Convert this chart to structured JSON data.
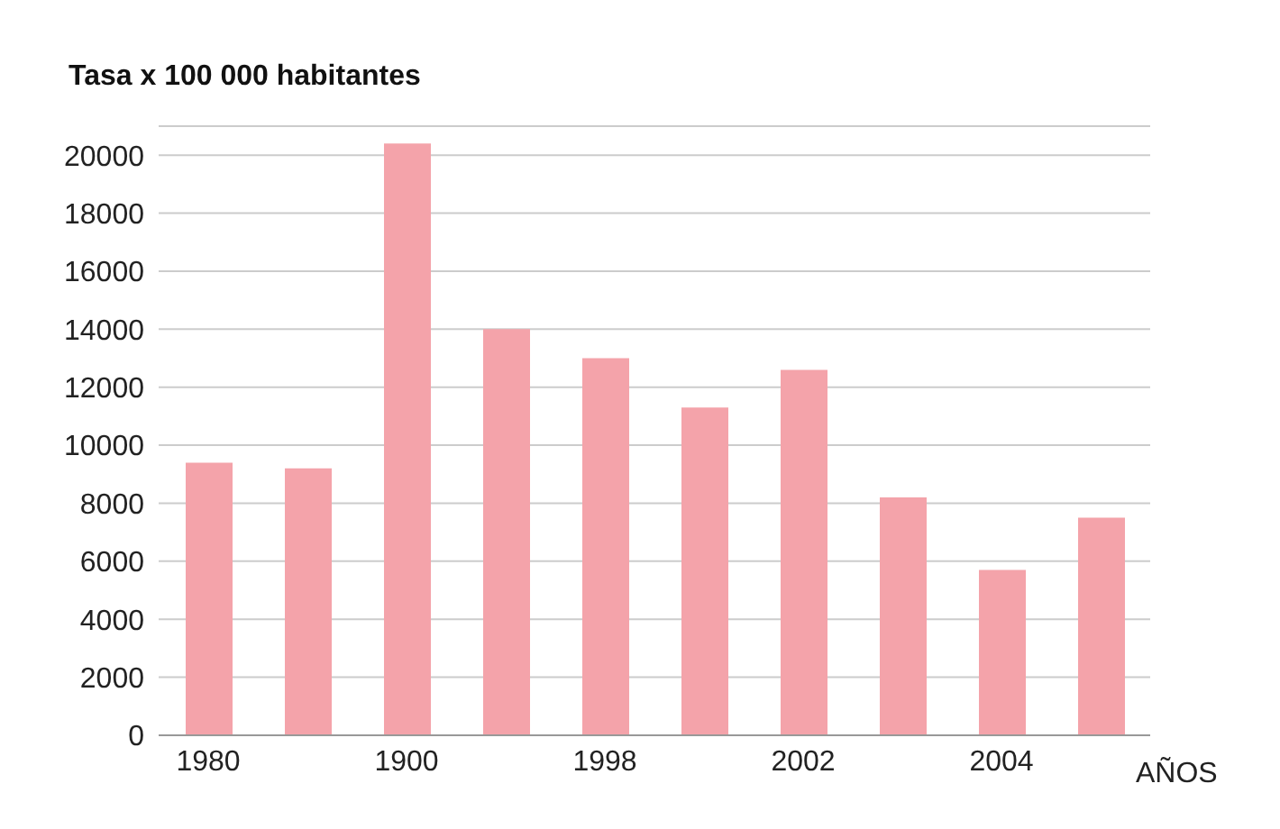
{
  "chart_data": {
    "type": "bar",
    "ylabel": "Tasa x 100 000 habitantes",
    "xlabel": "AÑOS",
    "categories": [
      "1980",
      null,
      "1900",
      null,
      "1998",
      null,
      "2002",
      null,
      "2004",
      null
    ],
    "values": [
      9400,
      9200,
      20400,
      14000,
      13000,
      11300,
      12600,
      8200,
      5700,
      7500
    ],
    "color": "#f4a3aa",
    "ylim": [
      0,
      21000
    ],
    "yticks": [
      0,
      2000,
      4000,
      6000,
      8000,
      10000,
      12000,
      14000,
      16000,
      18000,
      20000
    ],
    "grid": "y"
  }
}
